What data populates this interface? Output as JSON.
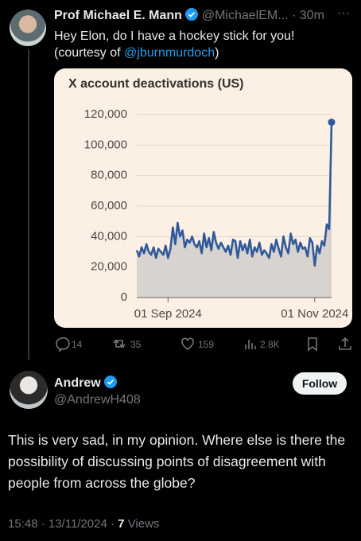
{
  "tweet": {
    "author_name": "Prof Michael E. Mann",
    "handle": "@MichaelEM...",
    "time": "· 30m",
    "text_line1": "Hey Elon, do I have a hockey stick for you!",
    "text_prefix": "(courtesy of ",
    "mention": "@jburnmurdoch",
    "text_suffix": ")",
    "stats": {
      "replies": 14,
      "reposts": 35,
      "likes": 159,
      "views": "2.8K"
    }
  },
  "chart_data": {
    "type": "line",
    "title": "X account deactivations (US)",
    "x": [
      "2024-08-19",
      "2024-08-20",
      "2024-08-21",
      "2024-08-22",
      "2024-08-23",
      "2024-08-24",
      "2024-08-25",
      "2024-08-26",
      "2024-08-27",
      "2024-08-28",
      "2024-08-29",
      "2024-08-30",
      "2024-08-31",
      "2024-09-01",
      "2024-09-02",
      "2024-09-03",
      "2024-09-04",
      "2024-09-05",
      "2024-09-06",
      "2024-09-07",
      "2024-09-08",
      "2024-09-09",
      "2024-09-10",
      "2024-09-11",
      "2024-09-12",
      "2024-09-13",
      "2024-09-14",
      "2024-09-15",
      "2024-09-16",
      "2024-09-17",
      "2024-09-18",
      "2024-09-19",
      "2024-09-20",
      "2024-09-21",
      "2024-09-22",
      "2024-09-23",
      "2024-09-24",
      "2024-09-25",
      "2024-09-26",
      "2024-09-27",
      "2024-09-28",
      "2024-09-29",
      "2024-09-30",
      "2024-10-01",
      "2024-10-02",
      "2024-10-03",
      "2024-10-04",
      "2024-10-05",
      "2024-10-06",
      "2024-10-07",
      "2024-10-08",
      "2024-10-09",
      "2024-10-10",
      "2024-10-11",
      "2024-10-12",
      "2024-10-13",
      "2024-10-14",
      "2024-10-15",
      "2024-10-16",
      "2024-10-17",
      "2024-10-18",
      "2024-10-19",
      "2024-10-20",
      "2024-10-21",
      "2024-10-22",
      "2024-10-23",
      "2024-10-24",
      "2024-10-25",
      "2024-10-26",
      "2024-10-27",
      "2024-10-28",
      "2024-10-29",
      "2024-10-30",
      "2024-10-31",
      "2024-11-01",
      "2024-11-02",
      "2024-11-03",
      "2024-11-04",
      "2024-11-05",
      "2024-11-06",
      "2024-11-07",
      "2024-11-08"
    ],
    "series": [
      {
        "name": "X account deactivations",
        "color": "#2f5a9a",
        "values": [
          31000,
          27000,
          33000,
          29000,
          35000,
          30000,
          28000,
          33000,
          26000,
          32000,
          30000,
          28000,
          34000,
          26000,
          32000,
          46000,
          35000,
          49000,
          40000,
          44000,
          33000,
          38000,
          36000,
          40000,
          35000,
          33000,
          37000,
          29000,
          42000,
          33000,
          39000,
          31000,
          43000,
          36000,
          32000,
          36000,
          33000,
          30000,
          34000,
          28000,
          38000,
          37000,
          26000,
          37000,
          31000,
          35000,
          29000,
          38000,
          27000,
          33000,
          30000,
          36000,
          28000,
          31000,
          29000,
          26000,
          35000,
          30000,
          38000,
          32000,
          27000,
          40000,
          33000,
          29000,
          42000,
          35000,
          38000,
          30000,
          36000,
          32000,
          33000,
          27000,
          39000,
          36000,
          21000,
          34000,
          29000,
          37000,
          34000,
          48000,
          45000,
          115000
        ]
      }
    ],
    "xlim": [
      "2024-08-19",
      "2024-11-08"
    ],
    "xticks": [
      {
        "value": "2024-09-01",
        "label": "01 Sep 2024"
      },
      {
        "value": "2024-11-01",
        "label": "01 Nov 2024"
      }
    ],
    "ylim": [
      0,
      120000
    ],
    "yticks": [
      0,
      {
        "value": 20000,
        "label": "20,000"
      },
      {
        "value": 40000,
        "label": "40,000"
      },
      {
        "value": 60000,
        "label": "60,000"
      },
      {
        "value": 80000,
        "label": "80,000"
      },
      {
        "value": 100000,
        "label": "100,000"
      },
      {
        "value": 120000,
        "label": "120,000"
      }
    ],
    "grid": true,
    "area_color": "#d9d3cf"
  },
  "reply": {
    "author_name": "Andrew",
    "handle": "@AndrewH408",
    "follow": "Follow",
    "text": "This is very sad, in my opinion. Where else is there the possibility of discussing points of disagreement with people from across the globe?",
    "timestamp": "15:48 · 13/11/2024 · ",
    "views_count": 7,
    "views_label": " Views"
  }
}
